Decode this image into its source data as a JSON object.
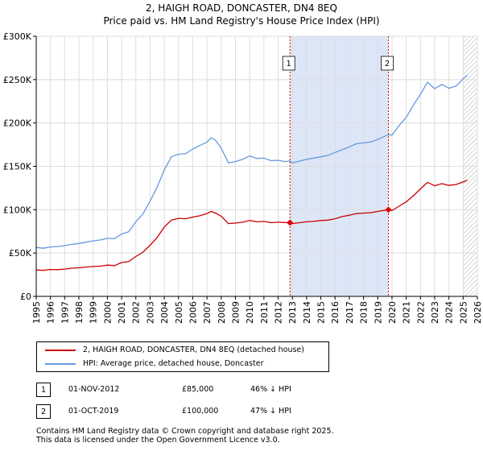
{
  "title_line1": "2, HAIGH ROAD, DONCASTER, DN4 8EQ",
  "title_line2": "Price paid vs. HM Land Registry's House Price Index (HPI)",
  "colors": {
    "property_line": "#cc0000",
    "hpi_line": "#6699dd",
    "shade": "#dde6f7",
    "marker_line": "#dd0000",
    "grid": "#dddddd"
  },
  "chart_data": {
    "type": "line",
    "title": "Price paid vs. HM Land Registry's House Price Index (HPI)",
    "xlabel": "",
    "ylabel": "",
    "xlim": [
      1995,
      2026
    ],
    "ylim": [
      0,
      300000
    ],
    "x_ticks": [
      1995,
      1996,
      1997,
      1998,
      1999,
      2000,
      2001,
      2002,
      2003,
      2004,
      2005,
      2006,
      2007,
      2008,
      2009,
      2010,
      2011,
      2012,
      2013,
      2014,
      2015,
      2016,
      2017,
      2018,
      2019,
      2020,
      2021,
      2022,
      2023,
      2024,
      2025,
      2026
    ],
    "x_tick_labels": [
      "1995",
      "1996",
      "1997",
      "1998",
      "1999",
      "2000",
      "2001",
      "2002",
      "2003",
      "2004",
      "2005",
      "2006",
      "2007",
      "2008",
      "2009",
      "2010",
      "2011",
      "2012",
      "2013",
      "2014",
      "2015",
      "2016",
      "2017",
      "2018",
      "2019",
      "2020",
      "2021",
      "2022",
      "2023",
      "2024",
      "2025",
      "2026"
    ],
    "y_ticks": [
      0,
      50000,
      100000,
      150000,
      200000,
      250000,
      300000
    ],
    "y_tick_labels": [
      "£0",
      "£50K",
      "£100K",
      "£150K",
      "£200K",
      "£250K",
      "£300K"
    ],
    "grid": true,
    "shaded_range": [
      2012.83,
      2019.75
    ],
    "hatched_from": 2025.0,
    "series": [
      {
        "name": "2, HAIGH ROAD, DONCASTER, DN4 8EQ (detached house)",
        "color": "#cc0000",
        "x": [
          1995,
          1995.5,
          1996,
          1996.5,
          1997,
          1997.5,
          1998,
          1998.5,
          1999,
          1999.5,
          2000,
          2000.5,
          2001,
          2001.5,
          2002,
          2002.5,
          2003,
          2003.5,
          2004,
          2004.5,
          2005,
          2005.5,
          2006,
          2006.5,
          2007,
          2007.3,
          2007.6,
          2008,
          2008.5,
          2009,
          2009.5,
          2010,
          2010.5,
          2011,
          2011.5,
          2012,
          2012.5,
          2012.83,
          2013,
          2013.5,
          2014,
          2014.5,
          2015,
          2015.5,
          2016,
          2016.5,
          2017,
          2017.5,
          2018,
          2018.5,
          2019,
          2019.75,
          2020,
          2020.5,
          2021,
          2021.5,
          2022,
          2022.5,
          2023,
          2023.5,
          2024,
          2024.5,
          2025,
          2025.3
        ],
        "values": [
          30500,
          30000,
          31000,
          30800,
          31500,
          32500,
          33000,
          33800,
          34500,
          34800,
          36000,
          35500,
          39000,
          40000,
          46000,
          51000,
          59000,
          68000,
          80000,
          88000,
          90000,
          89500,
          91500,
          93000,
          95500,
          98000,
          96000,
          92500,
          84000,
          84500,
          85500,
          87500,
          86000,
          86500,
          85000,
          85500,
          85200,
          85000,
          84000,
          85000,
          86000,
          86500,
          87500,
          88000,
          89500,
          92000,
          93500,
          95500,
          96000,
          96500,
          98000,
          100000,
          99000,
          104000,
          109000,
          116000,
          124000,
          131500,
          127500,
          130000,
          128000,
          129000,
          132000,
          134000
        ]
      },
      {
        "name": "HPI: Average price, detached house, Doncaster",
        "color": "#6699dd",
        "x": [
          1995,
          1995.5,
          1996,
          1996.5,
          1997,
          1997.5,
          1998,
          1998.5,
          1999,
          1999.5,
          2000,
          2000.5,
          2001,
          2001.5,
          2002,
          2002.5,
          2003,
          2003.5,
          2004,
          2004.5,
          2005,
          2005.5,
          2006,
          2006.5,
          2007,
          2007.3,
          2007.6,
          2008,
          2008.5,
          2009,
          2009.5,
          2010,
          2010.5,
          2011,
          2011.5,
          2012,
          2012.5,
          2012.83,
          2013,
          2013.5,
          2014,
          2014.5,
          2015,
          2015.5,
          2016,
          2016.5,
          2017,
          2017.5,
          2018,
          2018.5,
          2019,
          2019.75,
          2020,
          2020.5,
          2021,
          2021.5,
          2022,
          2022.5,
          2023,
          2023.5,
          2024,
          2024.5,
          2025,
          2025.3
        ],
        "values": [
          56500,
          55500,
          57000,
          57500,
          58500,
          60000,
          61000,
          62500,
          64000,
          65000,
          67000,
          66500,
          72000,
          74500,
          86000,
          95000,
          110000,
          126000,
          146000,
          161000,
          164000,
          164500,
          170000,
          174000,
          178000,
          183000,
          180000,
          171000,
          154000,
          155500,
          158000,
          162000,
          159000,
          159500,
          156500,
          157000,
          155500,
          156000,
          154000,
          156000,
          158000,
          159500,
          161000,
          162500,
          166000,
          169000,
          172500,
          176000,
          177000,
          178000,
          181000,
          186500,
          186000,
          197000,
          206500,
          220500,
          233000,
          247000,
          239500,
          244500,
          240000,
          242500,
          251000,
          255000
        ]
      }
    ],
    "annotations": [
      {
        "label": "1",
        "x": 2012.83,
        "value": 85000
      },
      {
        "label": "2",
        "x": 2019.75,
        "value": 100000
      }
    ]
  },
  "legend": {
    "items": [
      {
        "label": "2, HAIGH ROAD, DONCASTER, DN4 8EQ (detached house)",
        "color": "#cc0000"
      },
      {
        "label": "HPI: Average price, detached house, Doncaster",
        "color": "#6699dd"
      }
    ]
  },
  "transactions": [
    {
      "badge": "1",
      "date": "01-NOV-2012",
      "price": "£85,000",
      "hpi": "46% ↓ HPI"
    },
    {
      "badge": "2",
      "date": "01-OCT-2019",
      "price": "£100,000",
      "hpi": "47% ↓ HPI"
    }
  ],
  "footer": {
    "line1": "Contains HM Land Registry data © Crown copyright and database right 2025.",
    "line2": "This data is licensed under the Open Government Licence v3.0."
  }
}
